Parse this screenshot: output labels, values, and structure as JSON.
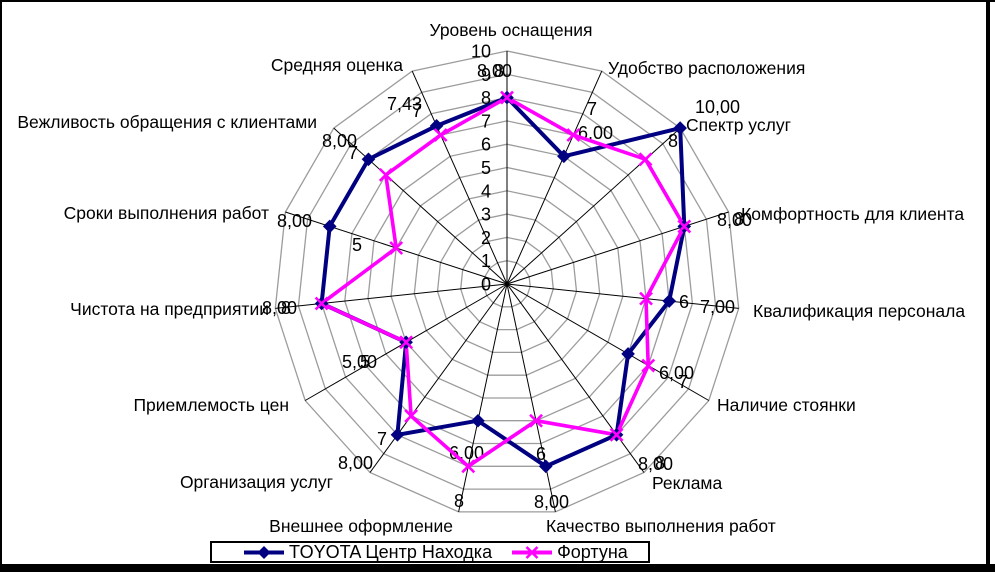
{
  "chart_data": {
    "type": "radar",
    "categories": [
      "Уровень оснащения",
      "Удобство расположения",
      "Спектр услуг",
      "Комфортность для клиента",
      "Квалификация персонала",
      "Наличие стоянки",
      "Реклама",
      "Качество выполнения работ",
      "Внешнее оформление",
      "Организация услуг",
      "Приемлемость цен",
      "Чистота на предприятии",
      "Сроки выполнения работ",
      "Вежливость обращения с клиентами",
      "Средняя оценка"
    ],
    "series": [
      {
        "name": "TOYOTA Центр Находка",
        "color": "#000080",
        "marker": "diamond",
        "values": [
          8,
          6,
          10,
          8,
          7,
          6,
          8,
          8,
          6,
          8,
          5,
          8,
          8,
          8,
          7.43
        ],
        "labels": [
          "8,00",
          "6,00",
          "10,00",
          "8,00",
          "7,00",
          "6,00",
          "8,00",
          "8,00",
          "6,00",
          "8,00",
          "5,00",
          "8,00",
          "8,00",
          "8,00",
          "7,43"
        ]
      },
      {
        "name": "Фортуна",
        "color": "#FF00FF",
        "marker": "x",
        "values": [
          8,
          7,
          8,
          8,
          6,
          7,
          8,
          6,
          8,
          7,
          5,
          8,
          5,
          7,
          7
        ],
        "labels": [
          "8",
          "7",
          "8",
          "8",
          "6",
          "7",
          "8",
          "6",
          "8",
          "7",
          "5",
          "8",
          "5",
          "7",
          "7"
        ]
      }
    ],
    "axis": {
      "min": 0,
      "max": 10,
      "ticks": [
        "0",
        "1",
        "2",
        "3",
        "4",
        "5",
        "6",
        "7",
        "8",
        "9",
        "10"
      ]
    },
    "grid": true,
    "grid_color": "#9c9c9c",
    "spoke_color": "#000000",
    "legend_position": "bottom"
  },
  "legend": {
    "items": [
      {
        "label": "TOYOTA Центр Находка"
      },
      {
        "label": "Фортуна"
      }
    ]
  }
}
